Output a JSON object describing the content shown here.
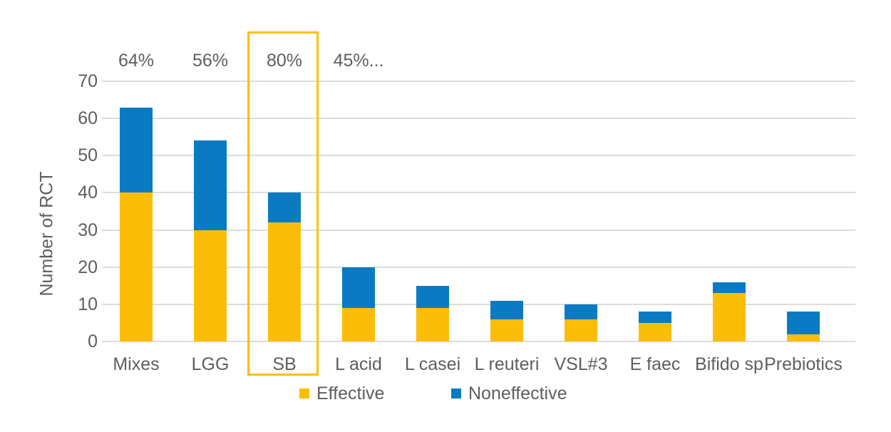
{
  "chart_data": {
    "type": "bar",
    "stacked": true,
    "title": "",
    "ylabel": "Number of RCT",
    "xlabel": "",
    "ylim": [
      0,
      70
    ],
    "yticks": [
      0,
      10,
      20,
      30,
      40,
      50,
      60,
      70
    ],
    "grid": true,
    "legend_position": "bottom",
    "categories": [
      "Mixes",
      "LGG",
      "SB",
      "L acid",
      "L casei",
      "L reuteri",
      "VSL#3",
      "E faec",
      "Bifido sp",
      "Prebiotics"
    ],
    "series": [
      {
        "name": "Effective",
        "color": "#FBBD07",
        "values": [
          40,
          30,
          32,
          9,
          9,
          6,
          6,
          5,
          13,
          2
        ]
      },
      {
        "name": "Noneffective",
        "color": "#0A7BC2",
        "values": [
          23,
          24,
          8,
          11,
          6,
          5,
          4,
          3,
          3,
          6
        ]
      }
    ],
    "stack_totals": [
      63,
      54,
      40,
      20,
      15,
      11,
      10,
      8,
      16,
      8
    ],
    "bar_annotations": [
      "64%",
      "56%",
      "80%",
      "45%...",
      "",
      "",
      "",
      "",
      "",
      ""
    ],
    "highlight": {
      "category": "SB",
      "box_color": "#FFC000"
    },
    "colors": {
      "gridline": "#DCDCDC",
      "text": "#5E5E5E",
      "background": "#FFFFFF"
    }
  }
}
